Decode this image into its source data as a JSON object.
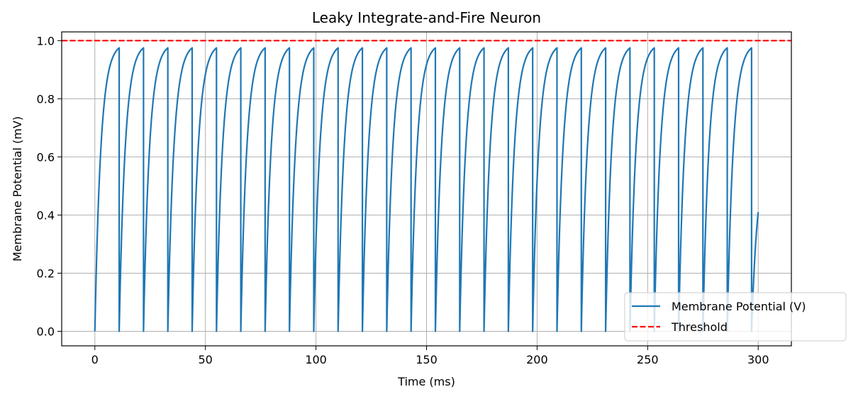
{
  "chart_data": {
    "type": "line",
    "title": "Leaky Integrate-and-Fire Neuron",
    "xlabel": "Time (ms)",
    "ylabel": "Membrane Potential (mV)",
    "xlim": [
      -15,
      315
    ],
    "ylim": [
      -0.05,
      1.03
    ],
    "xticks": [
      0,
      50,
      100,
      150,
      200,
      250,
      300
    ],
    "yticks": [
      0.0,
      0.2,
      0.4,
      0.6,
      0.8,
      1.0
    ],
    "xtick_labels": [
      "0",
      "50",
      "100",
      "150",
      "200",
      "250",
      "300"
    ],
    "ytick_labels": [
      "0.0",
      "0.2",
      "0.4",
      "0.6",
      "0.8",
      "1.0"
    ],
    "grid": true,
    "legend_position": "lower right",
    "series": [
      {
        "name": "Membrane Potential (V)",
        "color": "#1f77b4",
        "style": "solid",
        "model": {
          "tau_ms": 2.7,
          "v_inf": 1.0,
          "isi_ms": 11.0,
          "duration_ms": 300,
          "peak": 0.975,
          "reset": 0.0
        },
        "spike_times_ms": [
          11,
          22,
          33,
          44,
          55,
          66,
          77,
          88,
          99,
          110,
          121,
          132,
          143,
          154,
          165,
          176,
          187,
          198,
          209,
          220,
          231,
          242,
          253,
          264,
          275,
          286,
          297
        ],
        "final_value": 0.41
      },
      {
        "name": "Threshold",
        "color": "#ff0000",
        "style": "dashed",
        "value": 1.0
      }
    ]
  }
}
